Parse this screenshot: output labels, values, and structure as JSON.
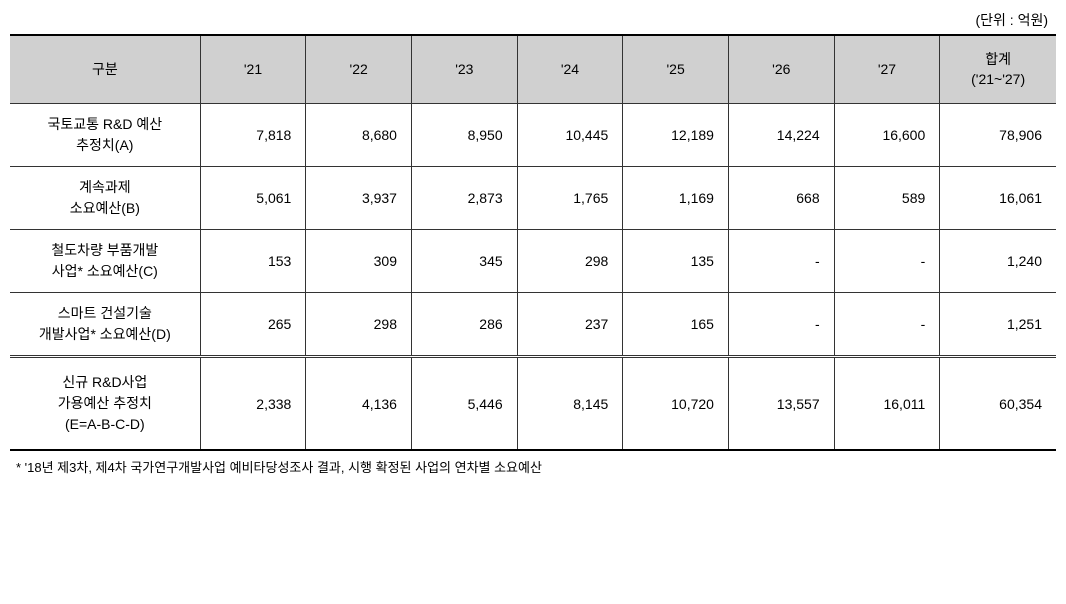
{
  "unit_label": "(단위 : 억원)",
  "table": {
    "columns": {
      "category": "구분",
      "y21": "'21",
      "y22": "'22",
      "y23": "'23",
      "y24": "'24",
      "y25": "'25",
      "y26": "'26",
      "y27": "'27",
      "total": "합계\n('21~'27)"
    },
    "rows": [
      {
        "label": "국토교통 R&D 예산\n추정치(A)",
        "y21": "7,818",
        "y22": "8,680",
        "y23": "8,950",
        "y24": "10,445",
        "y25": "12,189",
        "y26": "14,224",
        "y27": "16,600",
        "total": "78,906"
      },
      {
        "label": "계속과제\n소요예산(B)",
        "y21": "5,061",
        "y22": "3,937",
        "y23": "2,873",
        "y24": "1,765",
        "y25": "1,169",
        "y26": "668",
        "y27": "589",
        "total": "16,061"
      },
      {
        "label": "철도차량 부품개발\n사업* 소요예산(C)",
        "y21": "153",
        "y22": "309",
        "y23": "345",
        "y24": "298",
        "y25": "135",
        "y26": "-",
        "y27": "-",
        "total": "1,240"
      },
      {
        "label": "스마트 건설기술\n개발사업* 소요예산(D)",
        "y21": "265",
        "y22": "298",
        "y23": "286",
        "y24": "237",
        "y25": "165",
        "y26": "-",
        "y27": "-",
        "total": "1,251"
      },
      {
        "label": "신규 R&D사업\n가용예산 추정치\n(E=A-B-C-D)",
        "y21": "2,338",
        "y22": "4,136",
        "y23": "5,446",
        "y24": "8,145",
        "y25": "10,720",
        "y26": "13,557",
        "y27": "16,011",
        "total": "60,354"
      }
    ]
  },
  "footnote": "* '18년 제3차, 제4차 국가연구개발사업 예비타당성조사 결과, 시행 확정된 사업의 연차별 소요예산"
}
